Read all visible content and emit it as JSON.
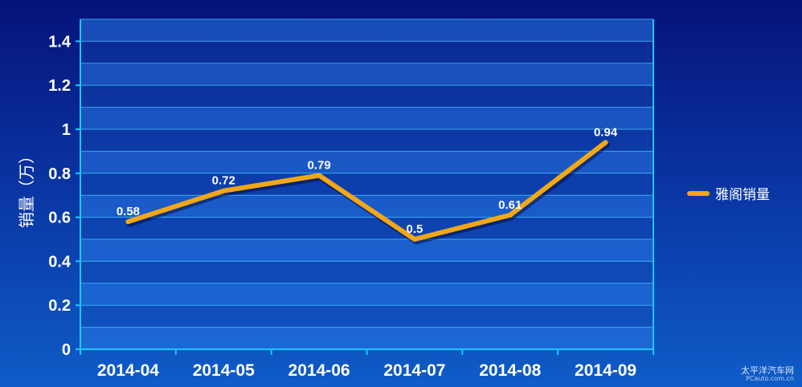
{
  "chart_data": {
    "type": "line",
    "categories": [
      "2014-04",
      "2014-05",
      "2014-06",
      "2014-07",
      "2014-08",
      "2014-09"
    ],
    "series": [
      {
        "name": "雅阁销量",
        "values": [
          0.58,
          0.72,
          0.79,
          0.5,
          0.61,
          0.94
        ],
        "color": "#f2a716"
      }
    ],
    "data_labels": [
      "0.58",
      "0.72",
      "0.79",
      "0.5",
      "0.61",
      "0.94"
    ],
    "ylabel": "销量（万）",
    "xlabel": "",
    "ylim": [
      0,
      1.5
    ],
    "yticks": [
      0,
      0.2,
      0.4,
      0.6,
      0.8,
      1,
      1.2,
      1.4
    ],
    "ytick_labels": [
      "0",
      "0.2",
      "0.4",
      "0.6",
      "0.8",
      "1",
      "1.2",
      "1.4"
    ],
    "grid": true,
    "legend_position": "right"
  },
  "watermark": {
    "line1": "太平洋汽车网",
    "line2": "PCauto.com.cn"
  },
  "colors": {
    "axis": "#1ec8ff",
    "text": "#ffffff",
    "line": "#f2a716"
  }
}
